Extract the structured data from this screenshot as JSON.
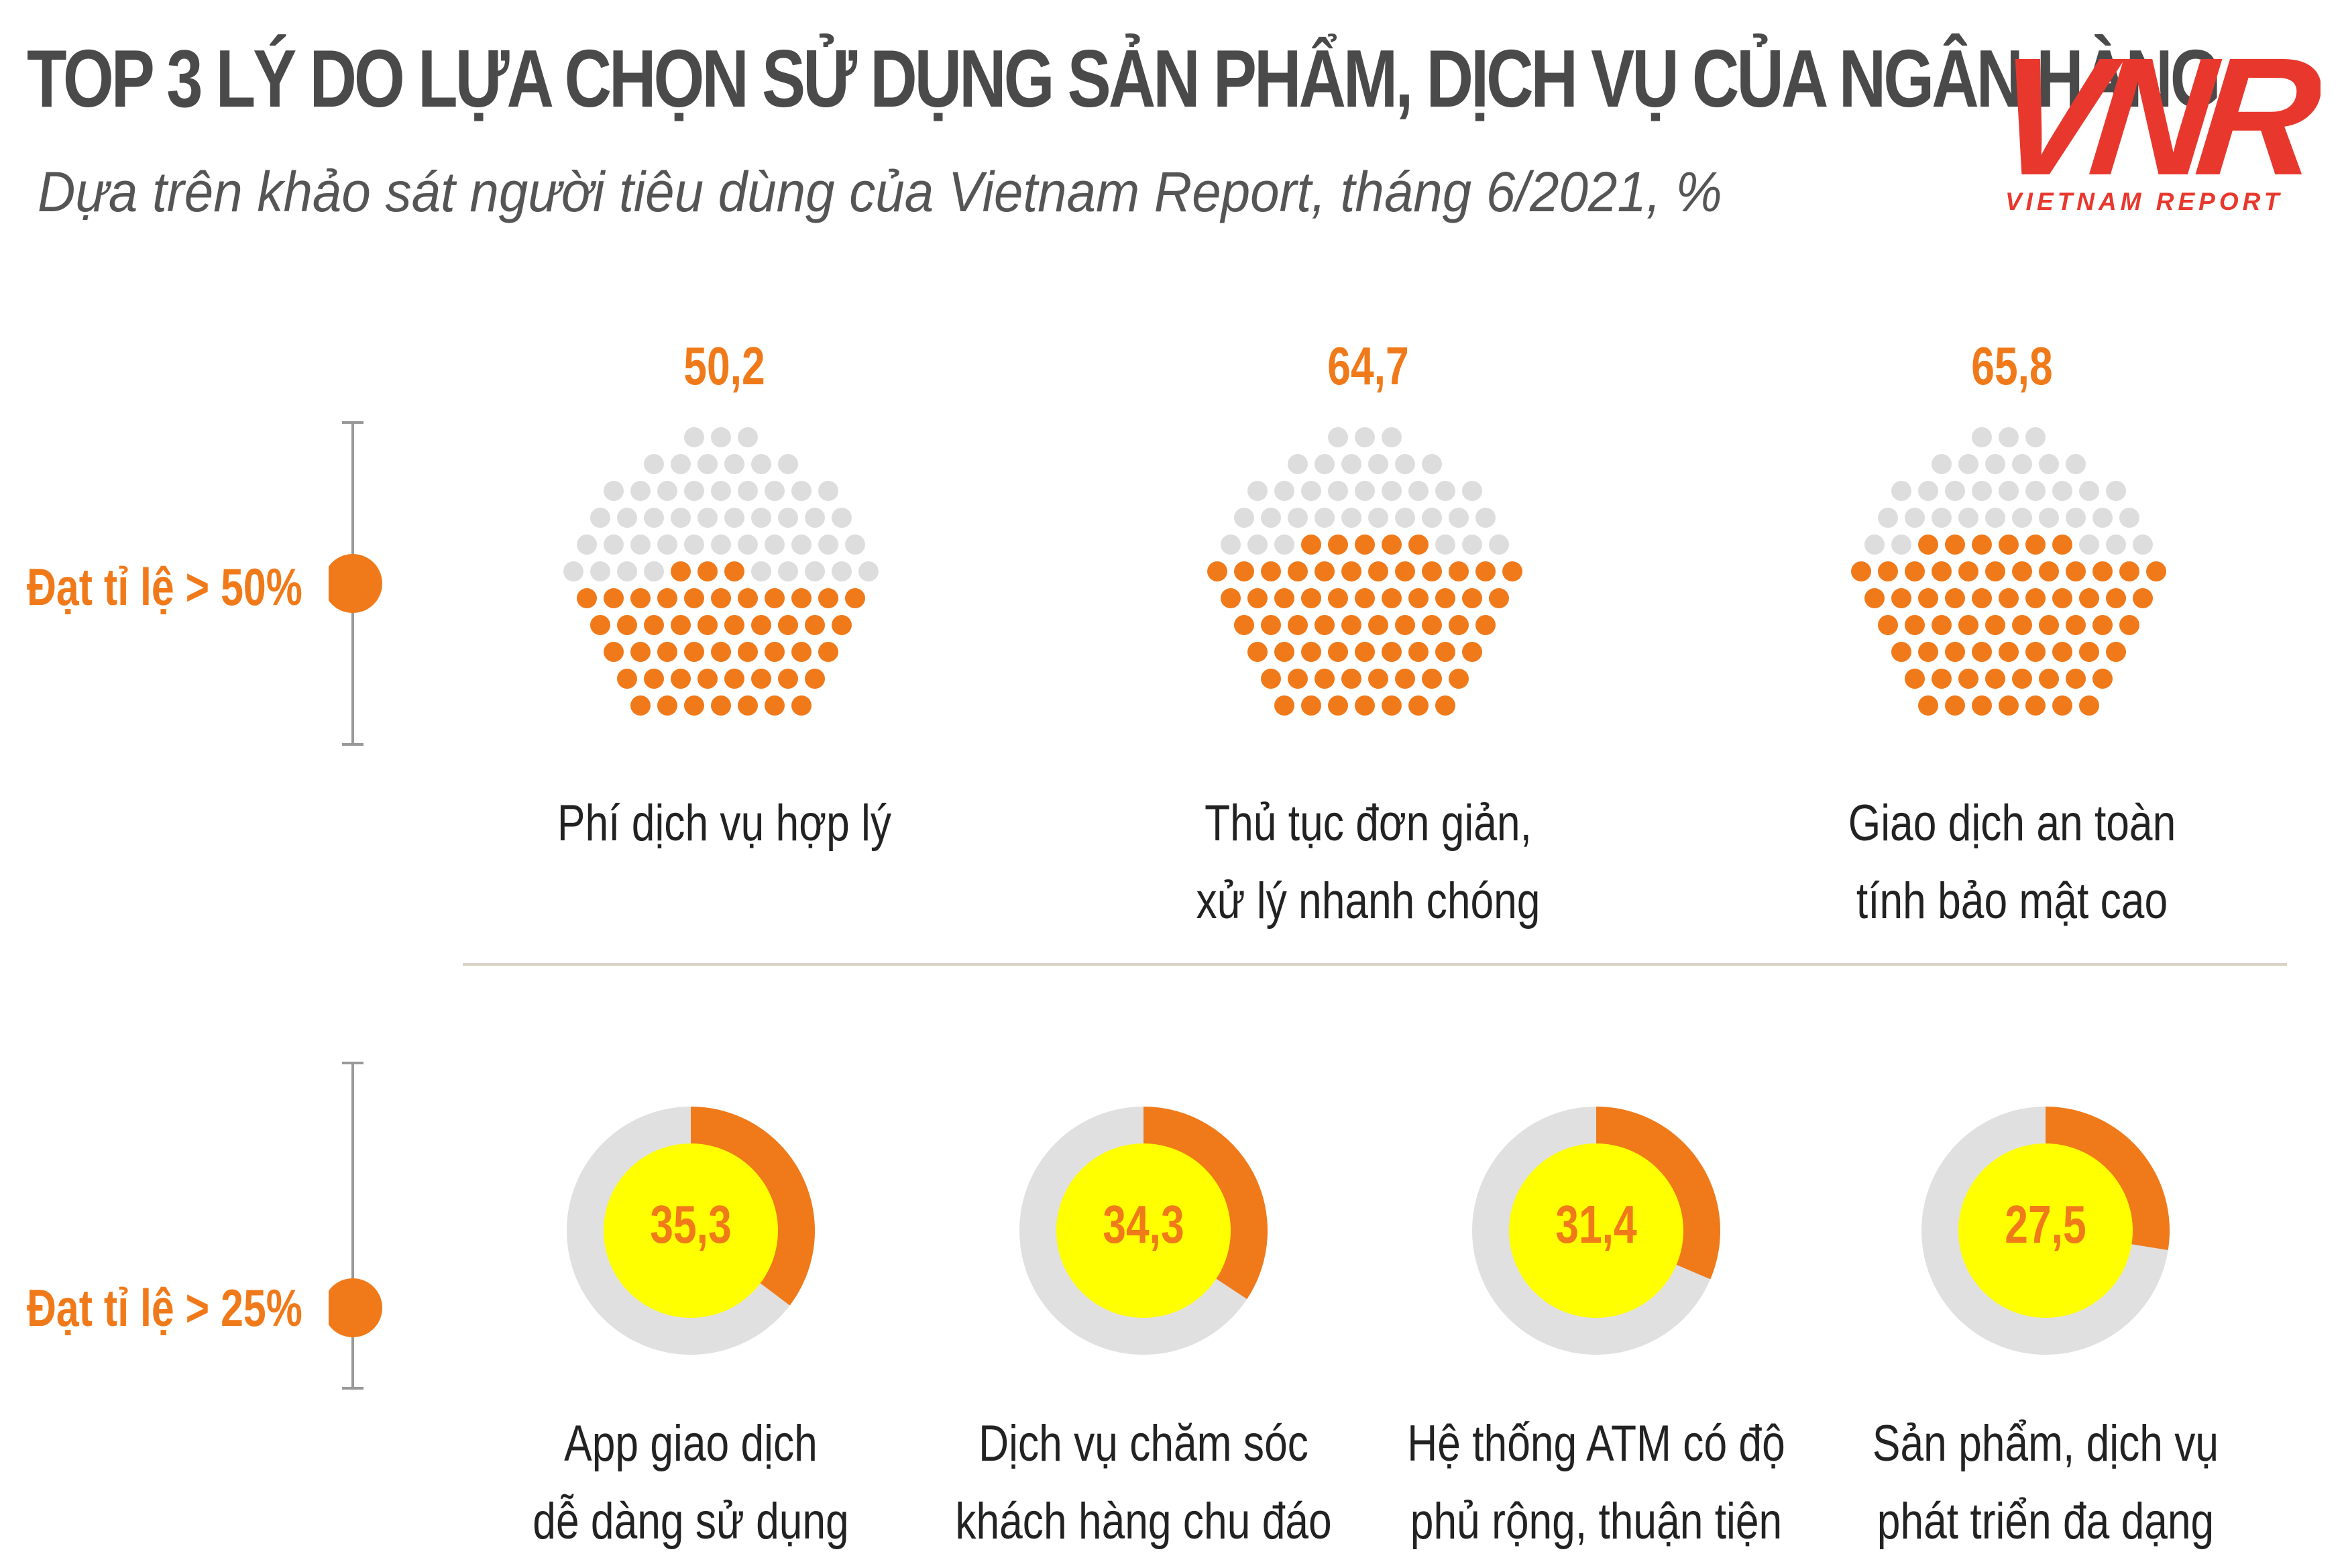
{
  "header": {
    "title": "TOP 3 LÝ DO LỰA CHỌN SỬ DỤNG SẢN PHẨM, DỊCH VỤ CỦA NGÂN HÀNG",
    "subtitle": "Dựa trên khảo sát người tiêu dùng của Vietnam Report, tháng 6/2021,  %"
  },
  "logo": {
    "mark": "VNR",
    "text": "VIETNAM REPORT"
  },
  "colors": {
    "accent": "#f07a1a",
    "dot_empty": "#dddddd",
    "ring_track": "#e0e0e0",
    "ring_center": "#ffff00",
    "title": "#4a4a4a",
    "brand": "#e8382e"
  },
  "chart_data": [
    {
      "type": "waffle",
      "tier_label": "Đạt tỉ lệ > 50%",
      "unit": "%",
      "categories": [
        "Phí dịch vụ hợp lý",
        "Thủ tục đơn giản, xử lý nhanh chóng",
        "Giao dịch an toàn tính bảo mật cao"
      ],
      "values": [
        50.2,
        64.7,
        65.8
      ],
      "items": [
        {
          "value_label": "50,2",
          "value": 50.2,
          "caption": [
            "Phí dịch vụ hợp lý"
          ]
        },
        {
          "value_label": "64,7",
          "value": 64.7,
          "caption": [
            "Thủ tục đơn giản,",
            "xử lý nhanh chóng"
          ]
        },
        {
          "value_label": "65,8",
          "value": 65.8,
          "caption": [
            "Giao dịch an toàn",
            "tính bảo mật cao"
          ]
        }
      ]
    },
    {
      "type": "donut",
      "tier_label": "Đạt tỉ lệ > 25%",
      "unit": "%",
      "categories": [
        "App giao dịch dễ dàng sử dụng",
        "Dịch vụ chăm sóc khách hàng chu đáo",
        "Hệ thống ATM có độ phủ rộng, thuận tiện",
        "Sản phẩm, dịch vụ phát triển đa dạng"
      ],
      "values": [
        35.3,
        34.3,
        31.4,
        27.5
      ],
      "items": [
        {
          "value_label": "35,3",
          "value": 35.3,
          "caption": [
            "App giao dịch",
            "dễ dàng sử dụng"
          ]
        },
        {
          "value_label": "34,3",
          "value": 34.3,
          "caption": [
            "Dịch vụ chăm sóc",
            "khách hàng chu đáo"
          ]
        },
        {
          "value_label": "31,4",
          "value": 31.4,
          "caption": [
            "Hệ thống ATM có độ",
            "phủ rộng, thuận tiện"
          ]
        },
        {
          "value_label": "27,5",
          "value": 27.5,
          "caption": [
            "Sản phẩm, dịch vụ",
            "phát triển đa dạng"
          ]
        }
      ]
    }
  ]
}
